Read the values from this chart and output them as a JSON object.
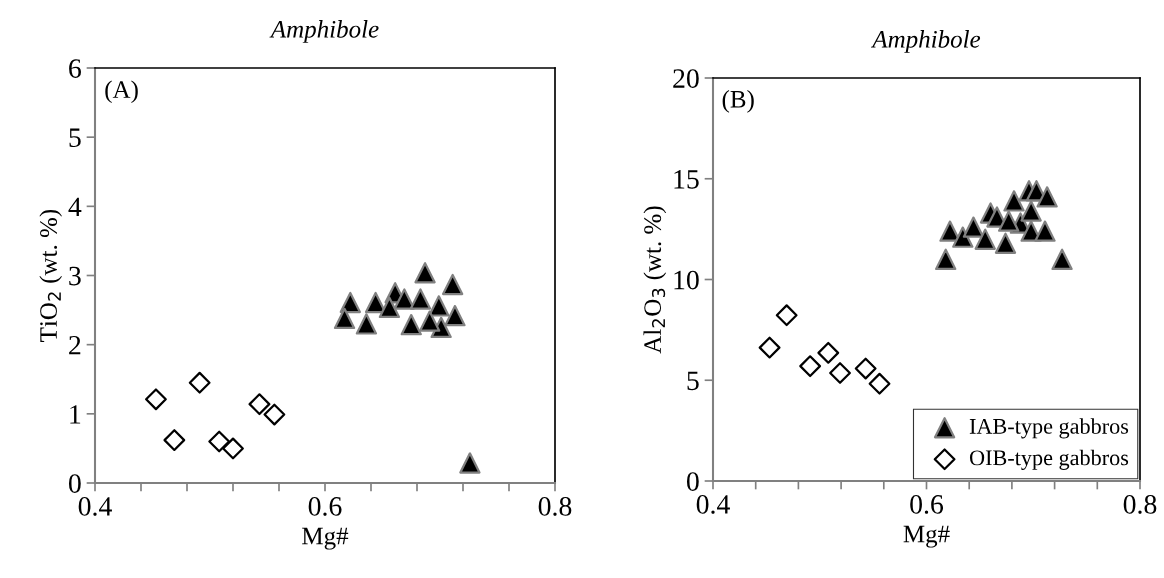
{
  "chart_data": [
    {
      "type": "scatter",
      "title": "Amphibole",
      "xlabel": "Mg#",
      "ylabel": "TiO$_{2}$ (wt. %)",
      "annotations": [
        "(A)"
      ],
      "xlim": [
        0.4,
        0.8
      ],
      "ylim": [
        0,
        6
      ],
      "xticks": [
        0.4,
        {
          "value": 0.44,
          "label": null
        },
        {
          "value": 0.48,
          "label": null
        },
        {
          "value": 0.52,
          "label": null
        },
        {
          "value": 0.56,
          "label": null
        },
        0.6,
        {
          "value": 0.64,
          "label": null
        },
        {
          "value": 0.68,
          "label": null
        },
        {
          "value": 0.72,
          "label": null
        },
        {
          "value": 0.76,
          "label": null
        },
        0.8
      ],
      "yticks": [
        0,
        1,
        2,
        3,
        4,
        5,
        6
      ],
      "grid": false,
      "legend": false,
      "series": [
        {
          "color": "#000000",
          "marker": "triangle",
          "x": [
            0.687,
            0.711,
            0.622,
            0.644,
            0.661,
            0.669,
            0.656,
            0.683,
            0.699,
            0.617,
            0.636,
            0.675,
            0.713,
            0.701,
            0.691,
            0.726
          ],
          "values": [
            3.04,
            2.87,
            2.61,
            2.61,
            2.75,
            2.66,
            2.54,
            2.66,
            2.56,
            2.38,
            2.3,
            2.29,
            2.42,
            2.25,
            2.34,
            0.29
          ]
        },
        {
          "color": "#ffffff",
          "marker": "diamond",
          "x": [
            0.453,
            0.491,
            0.469,
            0.543,
            0.556,
            0.508,
            0.52
          ],
          "values": [
            1.21,
            1.45,
            0.62,
            1.14,
            0.99,
            0.6,
            0.5
          ]
        }
      ]
    },
    {
      "type": "scatter",
      "title": "Amphibole",
      "xlabel": "Mg#",
      "ylabel": "Al$_{2}$O$_{3}$ (wt. %)",
      "annotations": [
        "(B)"
      ],
      "xlim": [
        0.4,
        0.8
      ],
      "ylim": [
        0,
        20
      ],
      "xticks": [
        0.4,
        {
          "value": 0.44,
          "label": null
        },
        {
          "value": 0.48,
          "label": null
        },
        {
          "value": 0.52,
          "label": null
        },
        {
          "value": 0.56,
          "label": null
        },
        0.6,
        {
          "value": 0.64,
          "label": null
        },
        {
          "value": 0.68,
          "label": null
        },
        {
          "value": 0.72,
          "label": null
        },
        {
          "value": 0.76,
          "label": null
        },
        0.8
      ],
      "yticks": [
        0,
        5,
        10,
        15,
        20
      ],
      "grid": false,
      "legend": "bottom right",
      "series": [
        {
          "name": "IAB-type gabbros",
          "color": "#000000",
          "marker": "triangle",
          "x": [
            0.618,
            0.622,
            0.634,
            0.644,
            0.655,
            0.66,
            0.666,
            0.674,
            0.682,
            0.688,
            0.696,
            0.703,
            0.698,
            0.713,
            0.711,
            0.727,
            0.698,
            0.677
          ],
          "values": [
            11.0,
            12.4,
            12.1,
            12.6,
            12.0,
            13.3,
            13.1,
            11.8,
            13.9,
            12.8,
            14.4,
            14.4,
            12.4,
            14.1,
            12.4,
            11.0,
            13.4,
            12.9
          ]
        },
        {
          "name": "OIB-type gabbros",
          "color": "#ffffff",
          "marker": "diamond",
          "x": [
            0.453,
            0.469,
            0.491,
            0.508,
            0.519,
            0.543,
            0.556
          ],
          "values": [
            6.62,
            8.23,
            5.7,
            6.36,
            5.36,
            5.58,
            4.83
          ]
        }
      ]
    }
  ]
}
